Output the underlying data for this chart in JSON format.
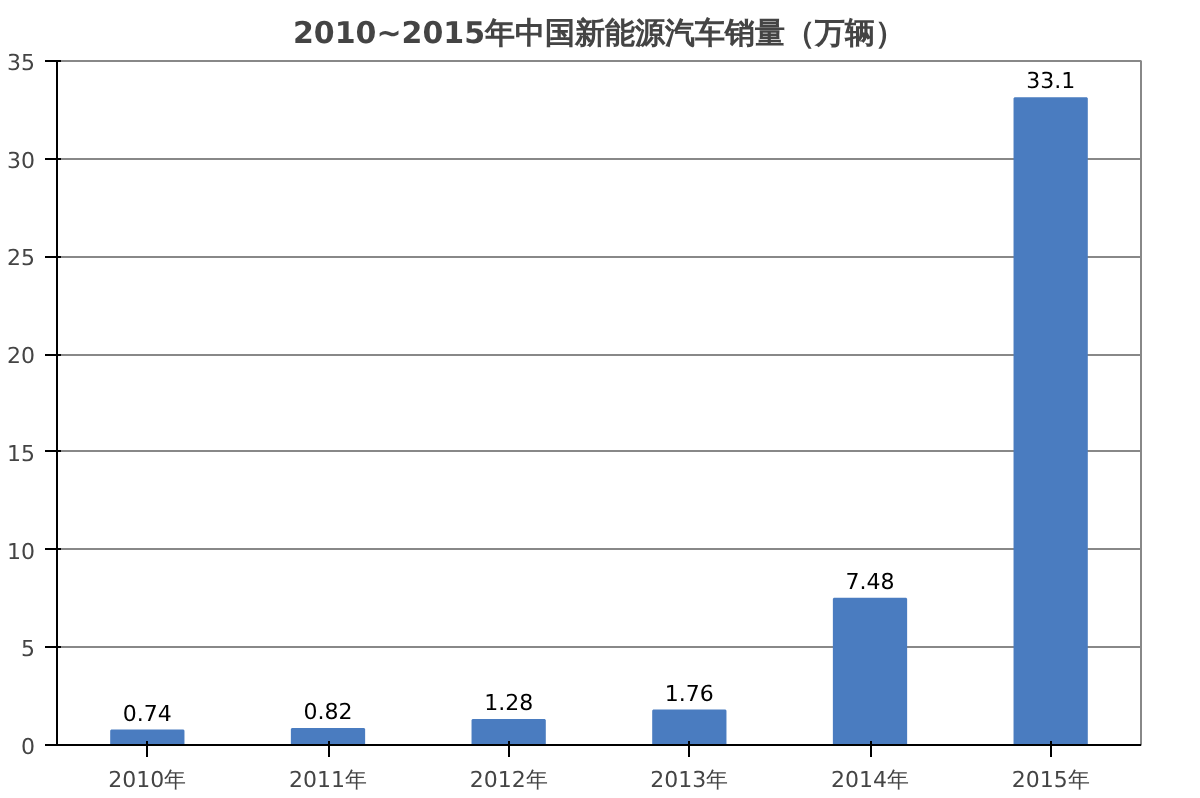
{
  "chart_data": {
    "type": "bar",
    "title": "2010~2015年中国新能源汽车销量（万辆）",
    "categories": [
      "2010年",
      "2011年",
      "2012年",
      "2013年",
      "2014年",
      "2015年"
    ],
    "values": [
      0.74,
      0.82,
      1.28,
      1.76,
      7.48,
      33.1
    ],
    "color": "#4a7cc0",
    "ylim": [
      0,
      35
    ],
    "yticks": [
      0,
      5,
      10,
      15,
      20,
      25,
      30,
      35
    ],
    "grid": "y",
    "data_labels": true
  }
}
